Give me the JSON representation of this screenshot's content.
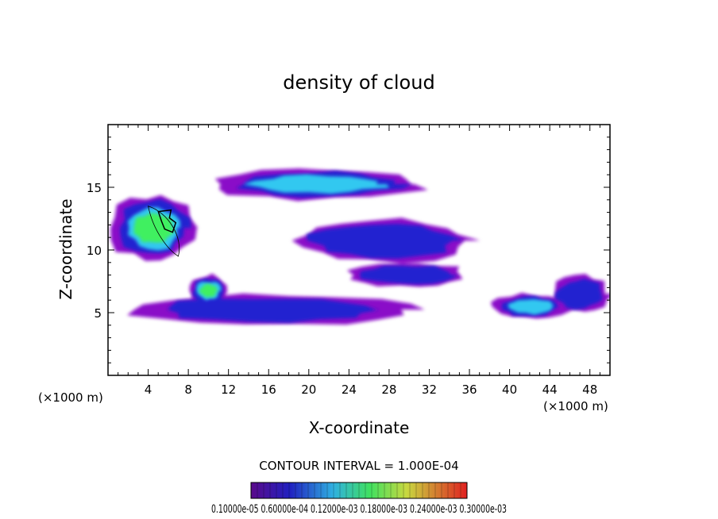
{
  "chart_data": {
    "type": "heatmap",
    "title": "density of cloud",
    "xlabel": "X-coordinate",
    "ylabel": "Z-coordinate",
    "x_unit_left": "(×1000 m)",
    "x_unit_right": "(×1000 m)",
    "xlim": [
      0,
      50
    ],
    "ylim": [
      0,
      20
    ],
    "xticks": [
      4,
      8,
      12,
      16,
      20,
      24,
      28,
      32,
      36,
      40,
      44,
      48
    ],
    "yticks": [
      5,
      10,
      15
    ],
    "contour_interval": "CONTOUR INTERVAL = 1.000E-04",
    "colorbar_labels": "0.10000e-05 0.60000e-04 0.12000e-03 0.18000e-03 0.24000e-03 0.30000e-03",
    "colorbar_label_parts": [
      "0.1000",
      "0e-05",
      "0e-04",
      "0e-03",
      "0e-03",
      "0e-03",
      "0e-03",
      "0e-03"
    ],
    "colorbar_range": [
      1e-06,
      0.0003
    ],
    "regions": [
      {
        "x": [
          0,
          9
        ],
        "z": [
          9,
          14.5
        ],
        "peak": 0.00015
      },
      {
        "x": [
          8,
          12
        ],
        "z": [
          5.5,
          8
        ],
        "peak": 0.00012
      },
      {
        "x": [
          10,
          32
        ],
        "z": [
          14,
          16.5
        ],
        "peak": 8e-05
      },
      {
        "x": [
          2,
          30
        ],
        "z": [
          4,
          6.5
        ],
        "peak": 4e-05
      },
      {
        "x": [
          38,
          46
        ],
        "z": [
          4.5,
          6.5
        ],
        "peak": 8e-05
      },
      {
        "x": [
          44,
          50
        ],
        "z": [
          5,
          8
        ],
        "peak": 4e-05
      },
      {
        "x": [
          18,
          37
        ],
        "z": [
          9,
          12.5
        ],
        "peak": 2e-05
      },
      {
        "x": [
          24,
          36
        ],
        "z": [
          7,
          9
        ],
        "peak": 2e-05
      }
    ],
    "colors": {
      "violet": "#8a10c8",
      "blue": "#2020d0",
      "cyan": "#30c8f0",
      "green": "#40f060",
      "yellow": "#d8e840",
      "red": "#e83020"
    }
  }
}
